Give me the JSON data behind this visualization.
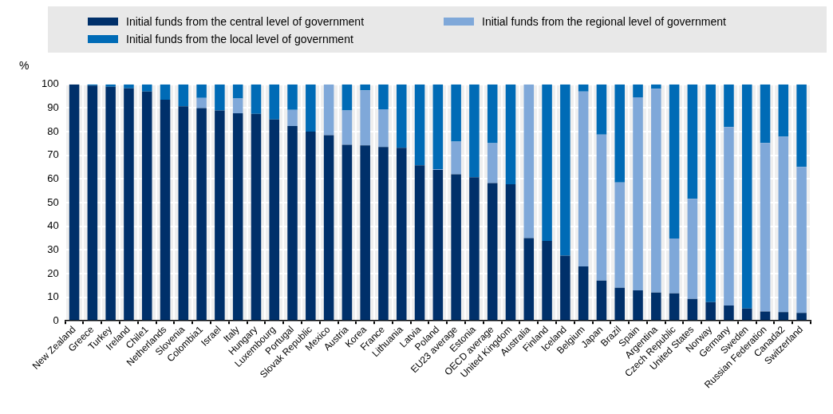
{
  "chart_data": {
    "type": "bar",
    "stacked": true,
    "ylabel": "%",
    "legend": "top",
    "categories": [
      "New Zealand",
      "Greece",
      "Turkey",
      "Ireland",
      "Chile1",
      "Netherlands",
      "Slovenia",
      "Colombia1",
      "Israel",
      "Italy",
      "Hungary",
      "Luxembourg",
      "Portugal",
      "Slovak Republic",
      "Mexico",
      "Austria",
      "Korea",
      "France",
      "Lithuania",
      "Latvia",
      "Poland",
      "EU23 average",
      "Estonia",
      "OECD average",
      "United Kingdom",
      "Australia",
      "Finland",
      "Iceland",
      "Belgium",
      "Japan",
      "Brazil",
      "Spain",
      "Argentina",
      "Czech Republic",
      "United States",
      "Norway",
      "Germany",
      "Sweden",
      "Russian Federation",
      "Canada2",
      "Switzerland"
    ],
    "series": [
      {
        "name": "Initial funds from the central level of government",
        "color": "#00306a",
        "values": [
          100,
          99.5,
          99,
          98.3,
          97,
          93.5,
          90.7,
          90,
          89,
          87.8,
          87.5,
          85.2,
          82.4,
          80,
          78.5,
          74.5,
          74.2,
          73.5,
          73.2,
          65.8,
          63.8,
          62,
          60.7,
          58.3,
          57.8,
          35,
          33.8,
          27.6,
          23,
          17,
          14,
          12.9,
          12,
          11.6,
          9.3,
          7.9,
          6.5,
          5.2,
          4,
          3.7,
          3.4
        ]
      },
      {
        "name": "Initial funds from the regional level of government",
        "color": "#7fa8d9",
        "values": [
          0,
          0,
          0,
          0,
          0,
          0,
          0,
          4.3,
          0,
          6.2,
          0,
          0,
          6.8,
          0,
          21.5,
          14.5,
          23.3,
          16,
          0,
          0,
          0.4,
          13.8,
          0,
          16.8,
          0,
          65,
          0,
          0,
          74,
          61.8,
          44.5,
          81.6,
          86.2,
          23.2,
          42.3,
          0,
          75.5,
          0,
          71.2,
          74.2,
          61.7
        ]
      },
      {
        "name": "Initial funds from the local level of government",
        "color": "#006bb6",
        "values": [
          0,
          0.5,
          1,
          1.7,
          3,
          6.5,
          9.3,
          5.7,
          11,
          6,
          12.5,
          14.8,
          10.8,
          20,
          0,
          11,
          2.5,
          10.5,
          26.8,
          34.2,
          35.8,
          24.2,
          39.3,
          24.9,
          42.2,
          0,
          66.2,
          72.4,
          3,
          21.2,
          41.5,
          5.5,
          1.8,
          65.2,
          48.4,
          92.1,
          18,
          94.8,
          24.8,
          22.1,
          34.9
        ]
      }
    ],
    "ylim": [
      0,
      100
    ],
    "yticks": [
      0,
      10,
      20,
      30,
      40,
      50,
      60,
      70,
      80,
      90,
      100
    ],
    "grid": true
  }
}
